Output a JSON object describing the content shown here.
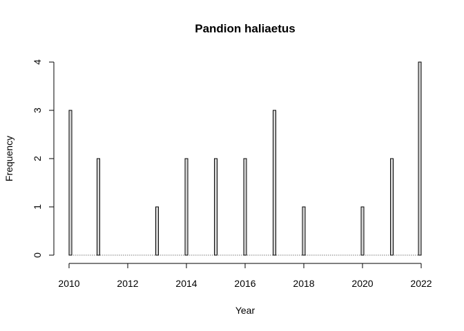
{
  "chart_data": {
    "type": "bar",
    "title": "Pandion haliaetus",
    "xlabel": "Year",
    "ylabel": "Frequency",
    "xlim": [
      2010,
      2022
    ],
    "ylim": [
      0,
      4
    ],
    "x_ticks": [
      "2010",
      "2012",
      "2014",
      "2016",
      "2018",
      "2020",
      "2022"
    ],
    "y_ticks": [
      "0",
      "1",
      "2",
      "3",
      "4"
    ],
    "x": [
      2010,
      2011,
      2013,
      2014,
      2015,
      2016,
      2017,
      2018,
      2020,
      2021,
      2022
    ],
    "values": [
      3,
      2,
      1,
      2,
      2,
      2,
      3,
      1,
      1,
      2,
      4
    ],
    "bar_fill": "#d3d3d3",
    "bar_stroke": "#000000",
    "grid": false
  }
}
